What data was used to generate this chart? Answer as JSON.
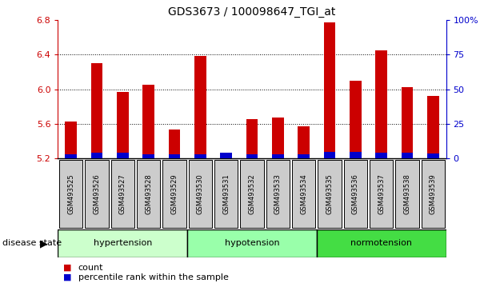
{
  "title": "GDS3673 / 100098647_TGI_at",
  "samples": [
    "GSM493525",
    "GSM493526",
    "GSM493527",
    "GSM493528",
    "GSM493529",
    "GSM493530",
    "GSM493531",
    "GSM493532",
    "GSM493533",
    "GSM493534",
    "GSM493535",
    "GSM493536",
    "GSM493537",
    "GSM493538",
    "GSM493539"
  ],
  "count_values": [
    5.63,
    6.3,
    5.97,
    6.05,
    5.53,
    6.38,
    5.27,
    5.65,
    5.67,
    5.57,
    6.77,
    6.1,
    6.45,
    6.02,
    5.92
  ],
  "percentile_values": [
    5.25,
    5.27,
    5.27,
    5.25,
    5.25,
    5.25,
    5.27,
    5.25,
    5.25,
    5.25,
    5.28,
    5.28,
    5.27,
    5.27,
    5.26
  ],
  "y_min": 5.2,
  "y_max": 6.8,
  "y_ticks": [
    5.2,
    5.6,
    6.0,
    6.4,
    6.8
  ],
  "right_y_ticks": [
    0,
    25,
    50,
    75,
    100
  ],
  "right_y_labels": [
    "0",
    "25",
    "50",
    "75",
    "100%"
  ],
  "groups": [
    {
      "label": "hypertension",
      "start": 0,
      "end": 5,
      "color": "#ccffcc"
    },
    {
      "label": "hypotension",
      "start": 5,
      "end": 10,
      "color": "#99ffaa"
    },
    {
      "label": "normotension",
      "start": 10,
      "end": 15,
      "color": "#44dd44"
    }
  ],
  "group_label": "disease state",
  "bar_color": "#cc0000",
  "percentile_color": "#0000cc",
  "bar_width": 0.45,
  "tick_label_color": "#cc0000",
  "right_tick_color": "#0000cc",
  "bg_color": "#ffffff",
  "grid_color": "#000000",
  "xticklabel_bg": "#cccccc"
}
